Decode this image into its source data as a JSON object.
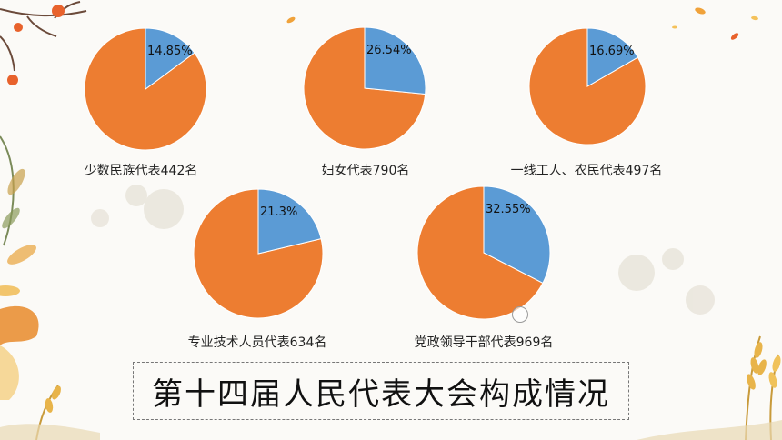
{
  "colors": {
    "slice": "#5b9bd5",
    "rest": "#ed7d31"
  },
  "chart_data": [
    {
      "type": "pie",
      "label": "少数民族代表442名",
      "slice_percent": 14.85,
      "slice_label": "14.85%"
    },
    {
      "type": "pie",
      "label": "妇女代表790名",
      "slice_percent": 26.54,
      "slice_label": "26.54%"
    },
    {
      "type": "pie",
      "label": "一线工人、农民代表497名",
      "slice_percent": 16.69,
      "slice_label": "16.69%"
    },
    {
      "type": "pie",
      "label": "专业技术人员代表634名",
      "slice_percent": 21.3,
      "slice_label": "21.3%"
    },
    {
      "type": "pie",
      "label": "党政领导干部代表969名",
      "slice_percent": 32.55,
      "slice_label": "32.55%"
    }
  ],
  "title": "第十四届人民代表大会构成情况"
}
